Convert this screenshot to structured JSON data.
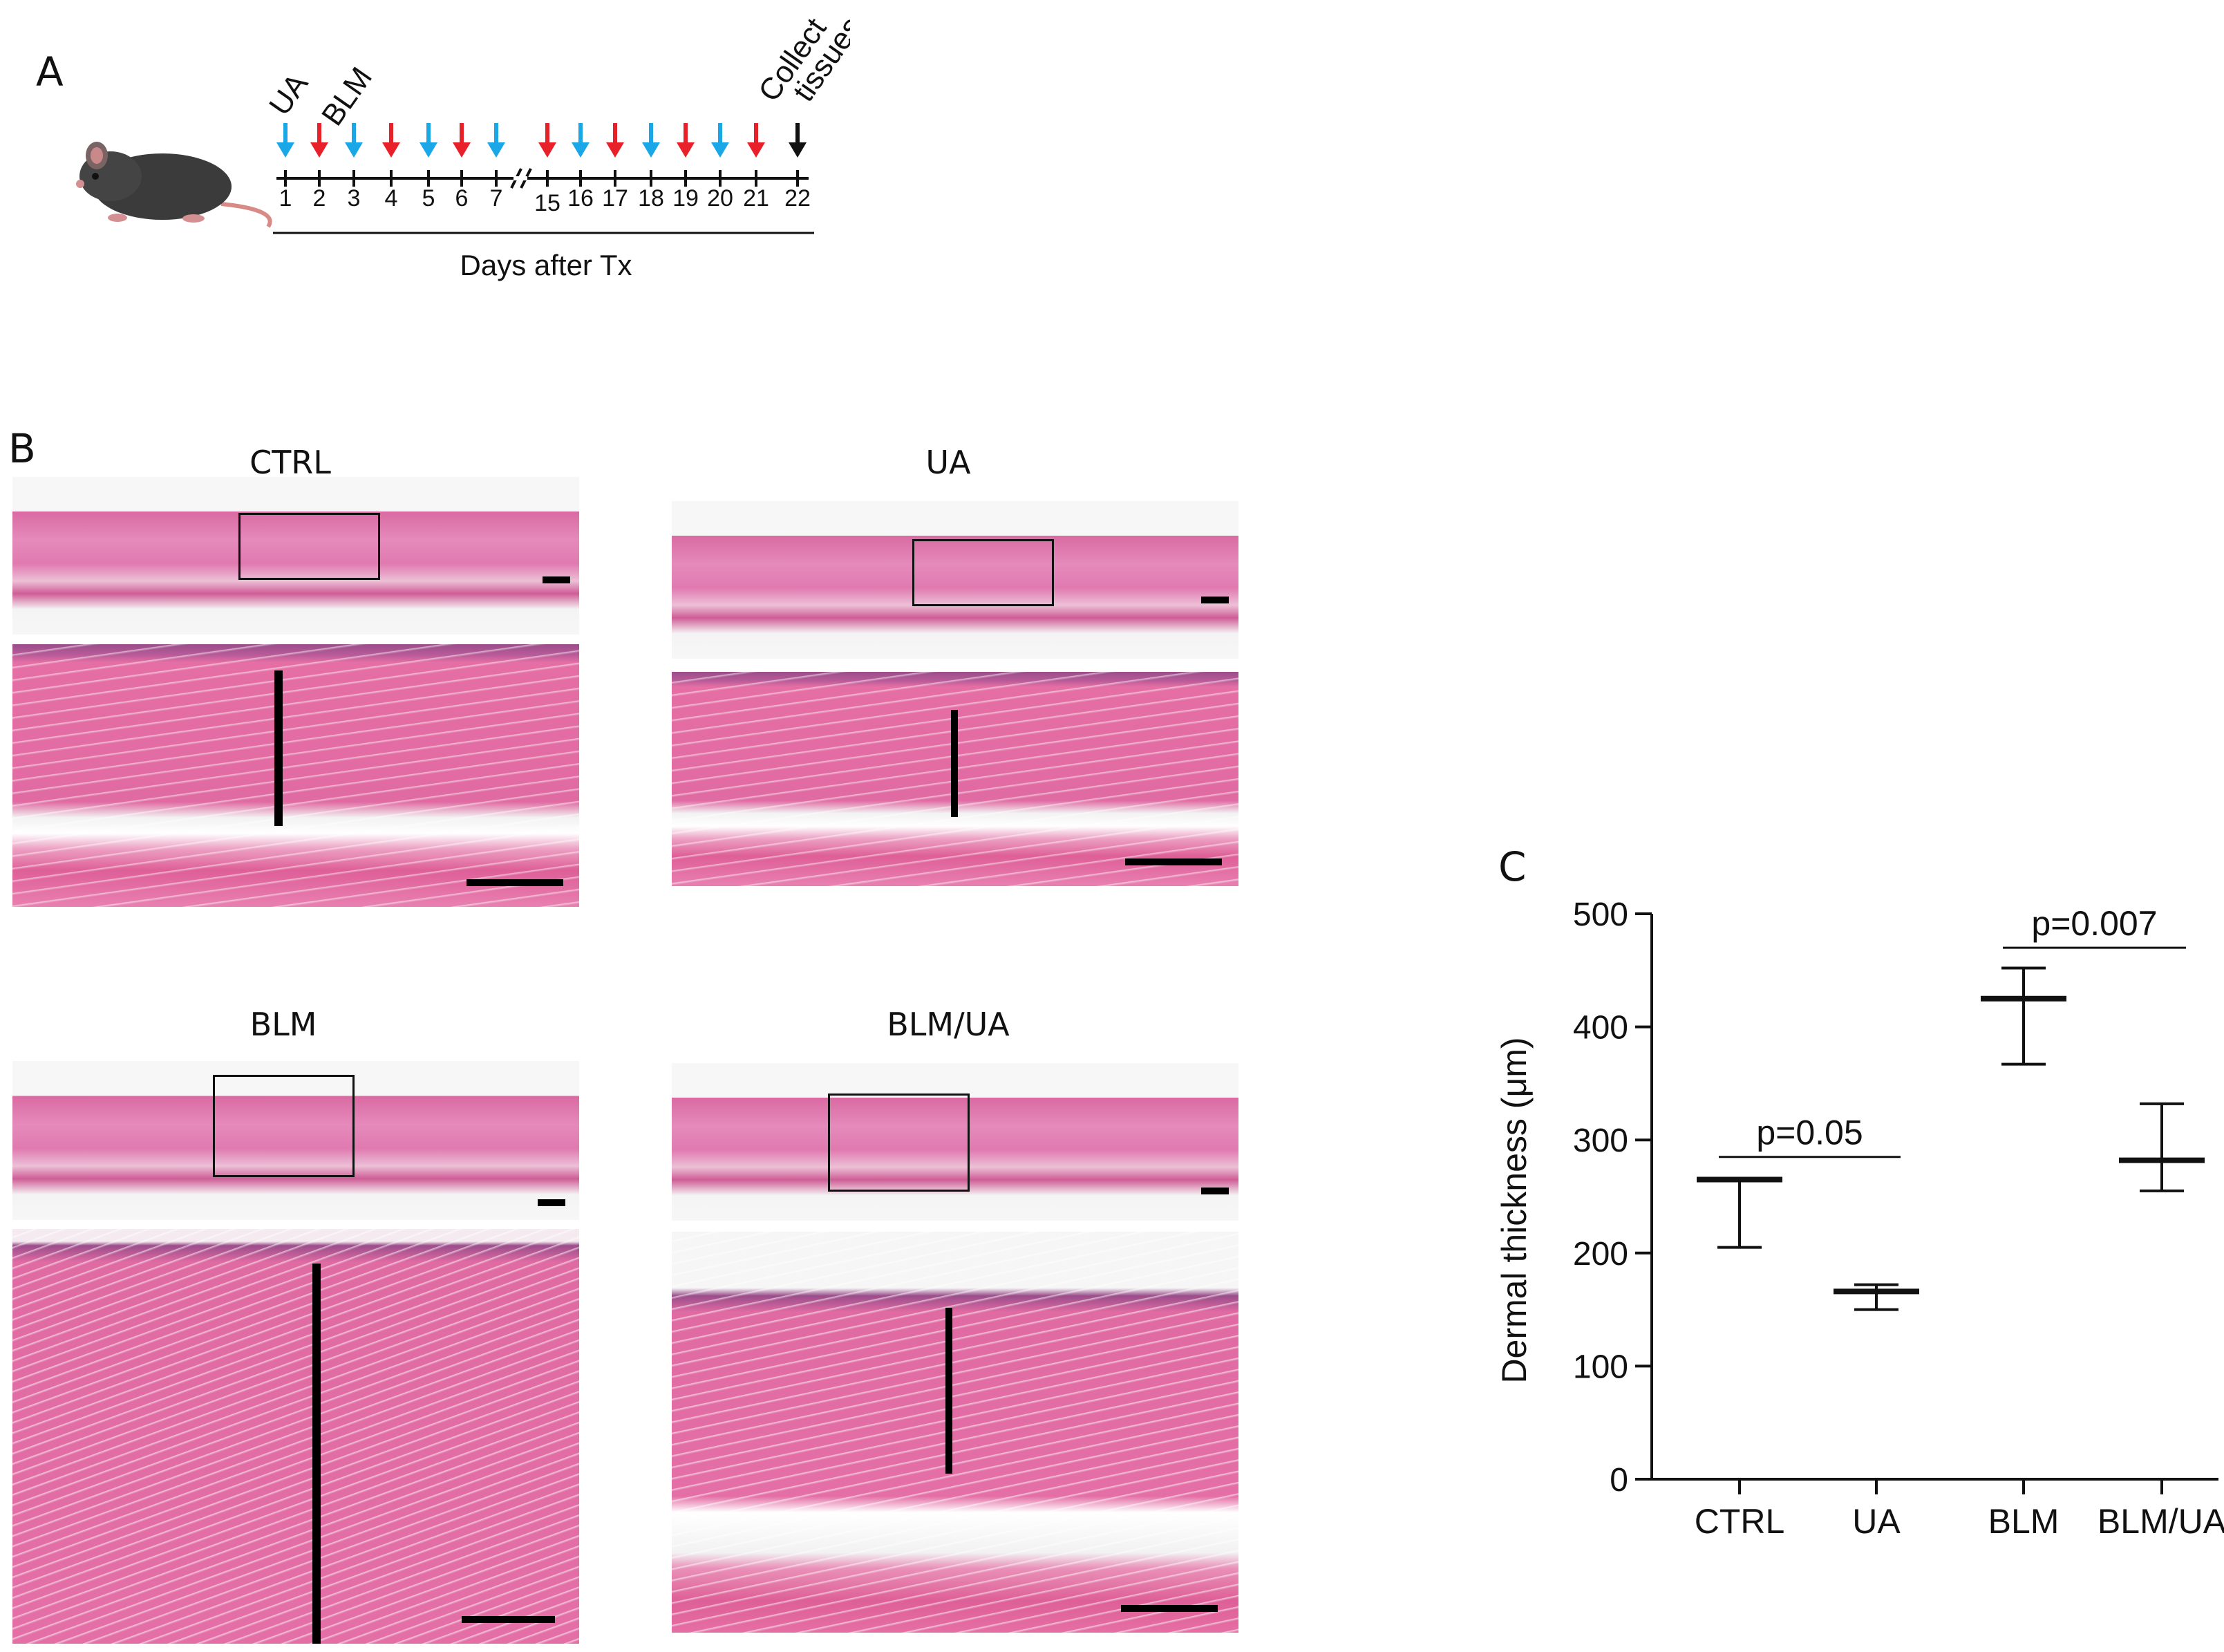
{
  "panel_a": {
    "letter": "A",
    "label_ua": "UA",
    "label_blm": "BLM",
    "label_collect": "Collect",
    "label_tissues": "tissues",
    "axis_title": "Days after Tx",
    "days": [
      "1",
      "2",
      "3",
      "4",
      "5",
      "6",
      "7",
      "15",
      "16",
      "17",
      "18",
      "19",
      "20",
      "21",
      "22"
    ],
    "arrow_colors": {
      "UA": "#1aa7e8",
      "BLM": "#e8202a",
      "collect": "#111111"
    },
    "arrow_schedule": [
      "UA",
      "BLM",
      "UA",
      "BLM",
      "UA",
      "BLM",
      "UA",
      "BLM",
      "UA",
      "BLM",
      "UA",
      "BLM",
      "UA",
      "BLM",
      "collect"
    ]
  },
  "panel_b": {
    "letter": "B",
    "titles": {
      "ctrl": "CTRL",
      "ua": "UA",
      "blm": "BLM",
      "blmua": "BLM/UA"
    }
  },
  "panel_c": {
    "letter": "C"
  },
  "chart_data": {
    "type": "scatter",
    "categories": [
      "CTRL",
      "UA",
      "BLM",
      "BLM/UA"
    ],
    "series": [
      {
        "mean": [
          265,
          166,
          425,
          282
        ],
        "upper": [
          265,
          172,
          452,
          332
        ],
        "lower": [
          205,
          150,
          367,
          255
        ]
      }
    ],
    "ylabel": "Dermal thickness (μm)",
    "ylim": [
      0,
      500
    ],
    "yticks": [
      "0",
      "100",
      "200",
      "300",
      "400",
      "500"
    ],
    "annotations": [
      {
        "text": "p=0.05",
        "from": "CTRL",
        "to": "UA",
        "y": 285
      },
      {
        "text": "p=0.007",
        "from": "BLM",
        "to": "BLM/UA",
        "y": 470
      }
    ],
    "grid": false
  }
}
